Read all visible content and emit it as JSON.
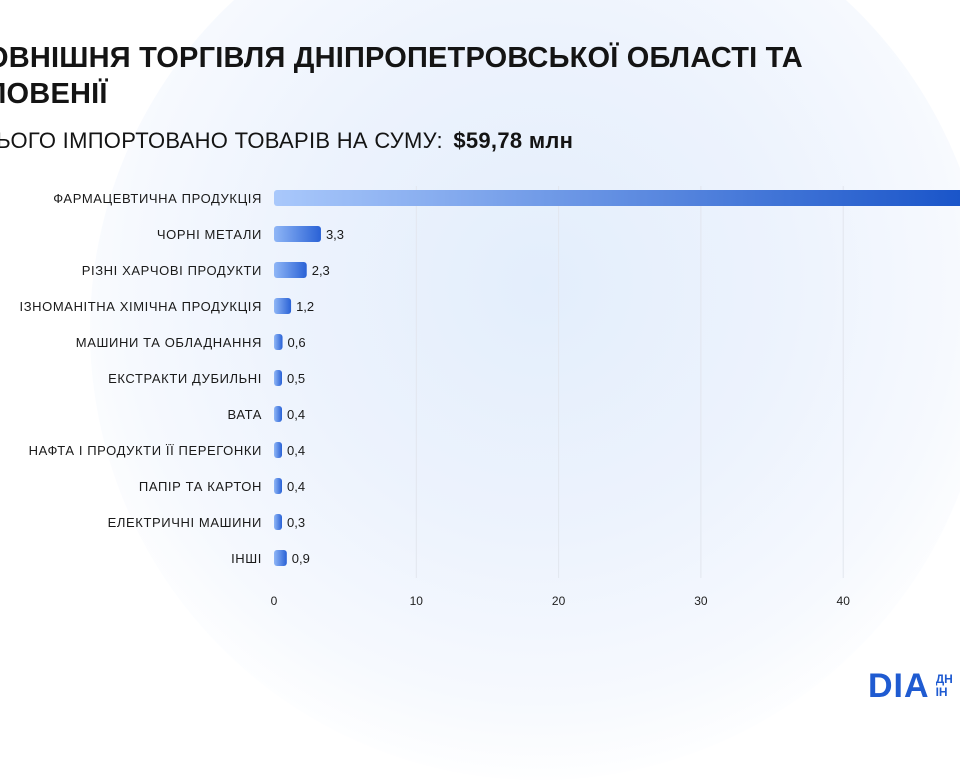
{
  "title_line1": "ОВНІШНЯ ТОРГІВЛЯ ДНІПРОПЕТРОВСЬКОЇ ОБЛАСТІ ТА",
  "title_line2": "ЛОВЕНІЇ",
  "subtitle_text": "СЬОГО ІМПОРТОВАНО ТОВАРІВ НА СУМУ:",
  "subtitle_amount": "$59,78 млн",
  "logo": {
    "mark": "DIA",
    "text_line1": "ДН",
    "text_line2": "ІН"
  },
  "colors": {
    "bar_light": "#a9c8fb",
    "bar_dark": "#1a55c9",
    "grid": "#e2e6ee"
  },
  "chart_data": {
    "type": "bar",
    "orientation": "horizontal",
    "categories": [
      "ФАРМАЦЕВТИЧНА ПРОДУКЦІЯ",
      "ЧОРНІ МЕТАЛИ",
      "РІЗНІ ХАРЧОВІ ПРОДУКТИ",
      "ІЗНОМАНІТНА ХІМІЧНА ПРОДУКЦІЯ",
      "МАШИНИ ТА ОБЛАДНАННЯ",
      "ЕКСТРАКТИ ДУБИЛЬНІ",
      "ВАТА",
      "НАФТА І ПРОДУКТИ ЇЇ ПЕРЕГОНКИ",
      "ПАПІР ТА КАРТОН",
      "ЕЛЕКТРИЧНІ МАШИНИ",
      "ІНШІ"
    ],
    "values": [
      49,
      3.3,
      2.3,
      1.2,
      0.6,
      0.5,
      0.4,
      0.4,
      0.4,
      0.3,
      0.9
    ],
    "value_labels": [
      "",
      "3,3",
      "2,3",
      "1,2",
      "0,6",
      "0,5",
      "0,4",
      "0,4",
      "0,4",
      "0,3",
      "0,9"
    ],
    "xticks": [
      0,
      10,
      20,
      30,
      40
    ],
    "xtick_labels": [
      "0",
      "10",
      "20",
      "30",
      "40"
    ],
    "xlim": [
      0,
      48.2
    ],
    "grid": true,
    "legend": "none"
  }
}
